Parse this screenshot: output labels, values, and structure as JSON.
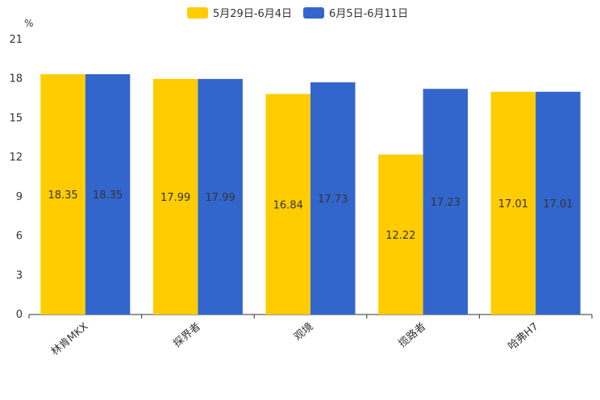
{
  "chart_data": {
    "type": "bar",
    "unit": "%",
    "categories": [
      "林肯MKX",
      "探界者",
      "观境",
      "揽路者",
      "哈弗H7"
    ],
    "series": [
      {
        "name": "5月29日-6月4日",
        "color": "#FFCC00",
        "values": [
          18.35,
          17.99,
          16.84,
          12.22,
          17.01
        ]
      },
      {
        "name": "6月5日-6月11日",
        "color": "#3366CC",
        "values": [
          18.35,
          17.99,
          17.73,
          17.23,
          17.01
        ]
      }
    ],
    "yticks": [
      0,
      3,
      6,
      9,
      12,
      15,
      18,
      21
    ],
    "ylim": [
      0,
      21
    ],
    "legend_position": "top-center"
  }
}
